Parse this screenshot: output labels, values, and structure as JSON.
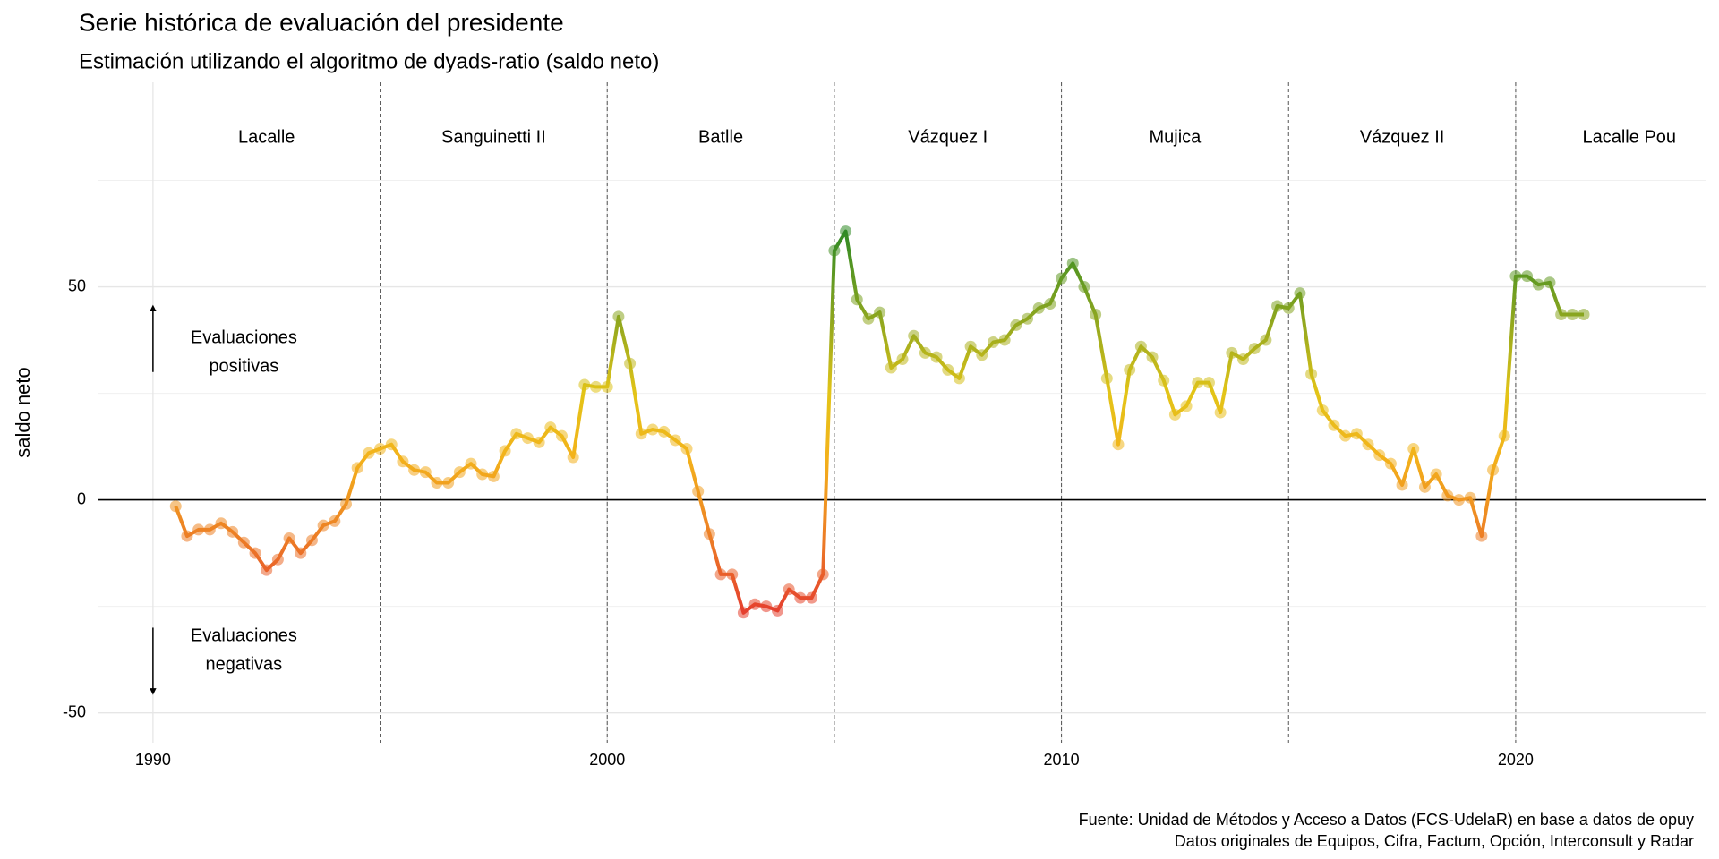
{
  "chart_data": {
    "type": "line",
    "title": "Serie histórica de evaluación del presidente",
    "subtitle": "Estimación utilizando el algoritmo de dyads-ratio (saldo neto)",
    "y_label": "saldo neto",
    "caption": [
      "Fuente: Unidad de Métodos y Acceso a Datos (FCS-UdelaR) en base a datos de opuy",
      "Datos originales de Equipos, Cifra, Factum, Opción, Interconsult y Radar"
    ],
    "x": [
      1990.5,
      1990.75,
      1991,
      1991.25,
      1991.5,
      1991.75,
      1992,
      1992.25,
      1992.5,
      1992.75,
      1993,
      1993.25,
      1993.5,
      1993.75,
      1994,
      1994.25,
      1994.5,
      1994.75,
      1995,
      1995.25,
      1995.5,
      1995.75,
      1996,
      1996.25,
      1996.5,
      1996.75,
      1997,
      1997.25,
      1997.5,
      1997.75,
      1998,
      1998.25,
      1998.5,
      1998.75,
      1999,
      1999.25,
      1999.5,
      1999.75,
      2000,
      2000.25,
      2000.5,
      2000.75,
      2001,
      2001.25,
      2001.5,
      2001.75,
      2002,
      2002.25,
      2002.5,
      2002.75,
      2003,
      2003.25,
      2003.5,
      2003.75,
      2004,
      2004.25,
      2004.5,
      2004.75,
      2005,
      2005.25,
      2005.5,
      2005.75,
      2006,
      2006.25,
      2006.5,
      2006.75,
      2007,
      2007.25,
      2007.5,
      2007.75,
      2008,
      2008.25,
      2008.5,
      2008.75,
      2009,
      2009.25,
      2009.5,
      2009.75,
      2010,
      2010.25,
      2010.5,
      2010.75,
      2011,
      2011.25,
      2011.5,
      2011.75,
      2012,
      2012.25,
      2012.5,
      2012.75,
      2013,
      2013.25,
      2013.5,
      2013.75,
      2014,
      2014.25,
      2014.5,
      2014.75,
      2015,
      2015.25,
      2015.5,
      2015.75,
      2016,
      2016.25,
      2016.5,
      2016.75,
      2017,
      2017.25,
      2017.5,
      2017.75,
      2018,
      2018.25,
      2018.5,
      2018.75,
      2019,
      2019.25,
      2019.5,
      2019.75,
      2020,
      2020.25,
      2020.5,
      2020.75,
      2021,
      2021.25,
      2021.5
    ],
    "values": [
      -1.5,
      -8.5,
      -7,
      -7,
      -5.5,
      -7.5,
      -10,
      -12.5,
      -16.5,
      -14,
      -9,
      -12.5,
      -9.5,
      -6,
      -5,
      -1,
      7.5,
      11,
      12,
      13,
      9,
      7,
      6.5,
      4,
      4,
      6.5,
      8.5,
      6,
      5.5,
      11.5,
      15.5,
      14.5,
      13.5,
      17,
      15,
      10,
      27,
      26.5,
      26.5,
      43,
      32,
      15.5,
      16.5,
      16,
      14,
      12,
      2,
      -8,
      -17.5,
      -17.5,
      -26.5,
      -24.5,
      -25,
      -26,
      -21,
      -23,
      -23,
      -17.5,
      58.5,
      63,
      47,
      42.5,
      44,
      31,
      33,
      38.5,
      34.5,
      33.5,
      30.5,
      28.5,
      36,
      34,
      37,
      37.5,
      41,
      42.5,
      45,
      46,
      52,
      55.5,
      50,
      43.5,
      28.5,
      13,
      30.5,
      36,
      33.5,
      28,
      20,
      22,
      27.5,
      27.5,
      20.5,
      34.5,
      33,
      35.5,
      37.5,
      45.5,
      45,
      48.5,
      29.5,
      21,
      17.5,
      15,
      15.5,
      13,
      10.5,
      8.5,
      3.5,
      12,
      3,
      6,
      1,
      0,
      0.5,
      -8.5,
      7,
      15,
      52.5,
      52.5,
      50.5,
      51,
      43.5,
      43.5,
      43.5
    ],
    "xlim": [
      1988.8,
      2024.2
    ],
    "xticks": [
      1990,
      2000,
      2010,
      2020
    ],
    "ylim": [
      -57,
      98
    ],
    "yticks": [
      -50,
      0,
      50
    ],
    "y_minor_grid": [
      -25,
      25,
      75
    ],
    "grid": true,
    "zero_line": true,
    "color_scale": [
      {
        "value": -26,
        "color": "#e5402e"
      },
      {
        "value": -10,
        "color": "#ec7a26"
      },
      {
        "value": 10,
        "color": "#f3b21b"
      },
      {
        "value": 25,
        "color": "#e3c418"
      },
      {
        "value": 40,
        "color": "#99aa1e"
      },
      {
        "value": 63,
        "color": "#2f8a25"
      }
    ],
    "periods": [
      {
        "name": "Lacalle",
        "start": 1990,
        "end": 1995
      },
      {
        "name": "Sanguinetti II",
        "start": 1995,
        "end": 2000
      },
      {
        "name": "Batlle",
        "start": 2000,
        "end": 2005
      },
      {
        "name": "Vázquez I",
        "start": 2005,
        "end": 2010
      },
      {
        "name": "Mujica",
        "start": 2010,
        "end": 2015
      },
      {
        "name": "Vázquez II",
        "start": 2015,
        "end": 2020
      },
      {
        "name": "Lacalle Pou",
        "start": 2020,
        "end": 2025
      }
    ],
    "annotations": [
      {
        "lines": [
          "Evaluaciones",
          "positivas"
        ],
        "x": 1992,
        "y": 34.5,
        "arrow_x": 1990,
        "arrow_from": 30,
        "arrow_to": 45
      },
      {
        "lines": [
          "Evaluaciones",
          "negativas"
        ],
        "x": 1992,
        "y": -35.5,
        "arrow_x": 1990,
        "arrow_from": -30,
        "arrow_to": -45
      }
    ]
  }
}
